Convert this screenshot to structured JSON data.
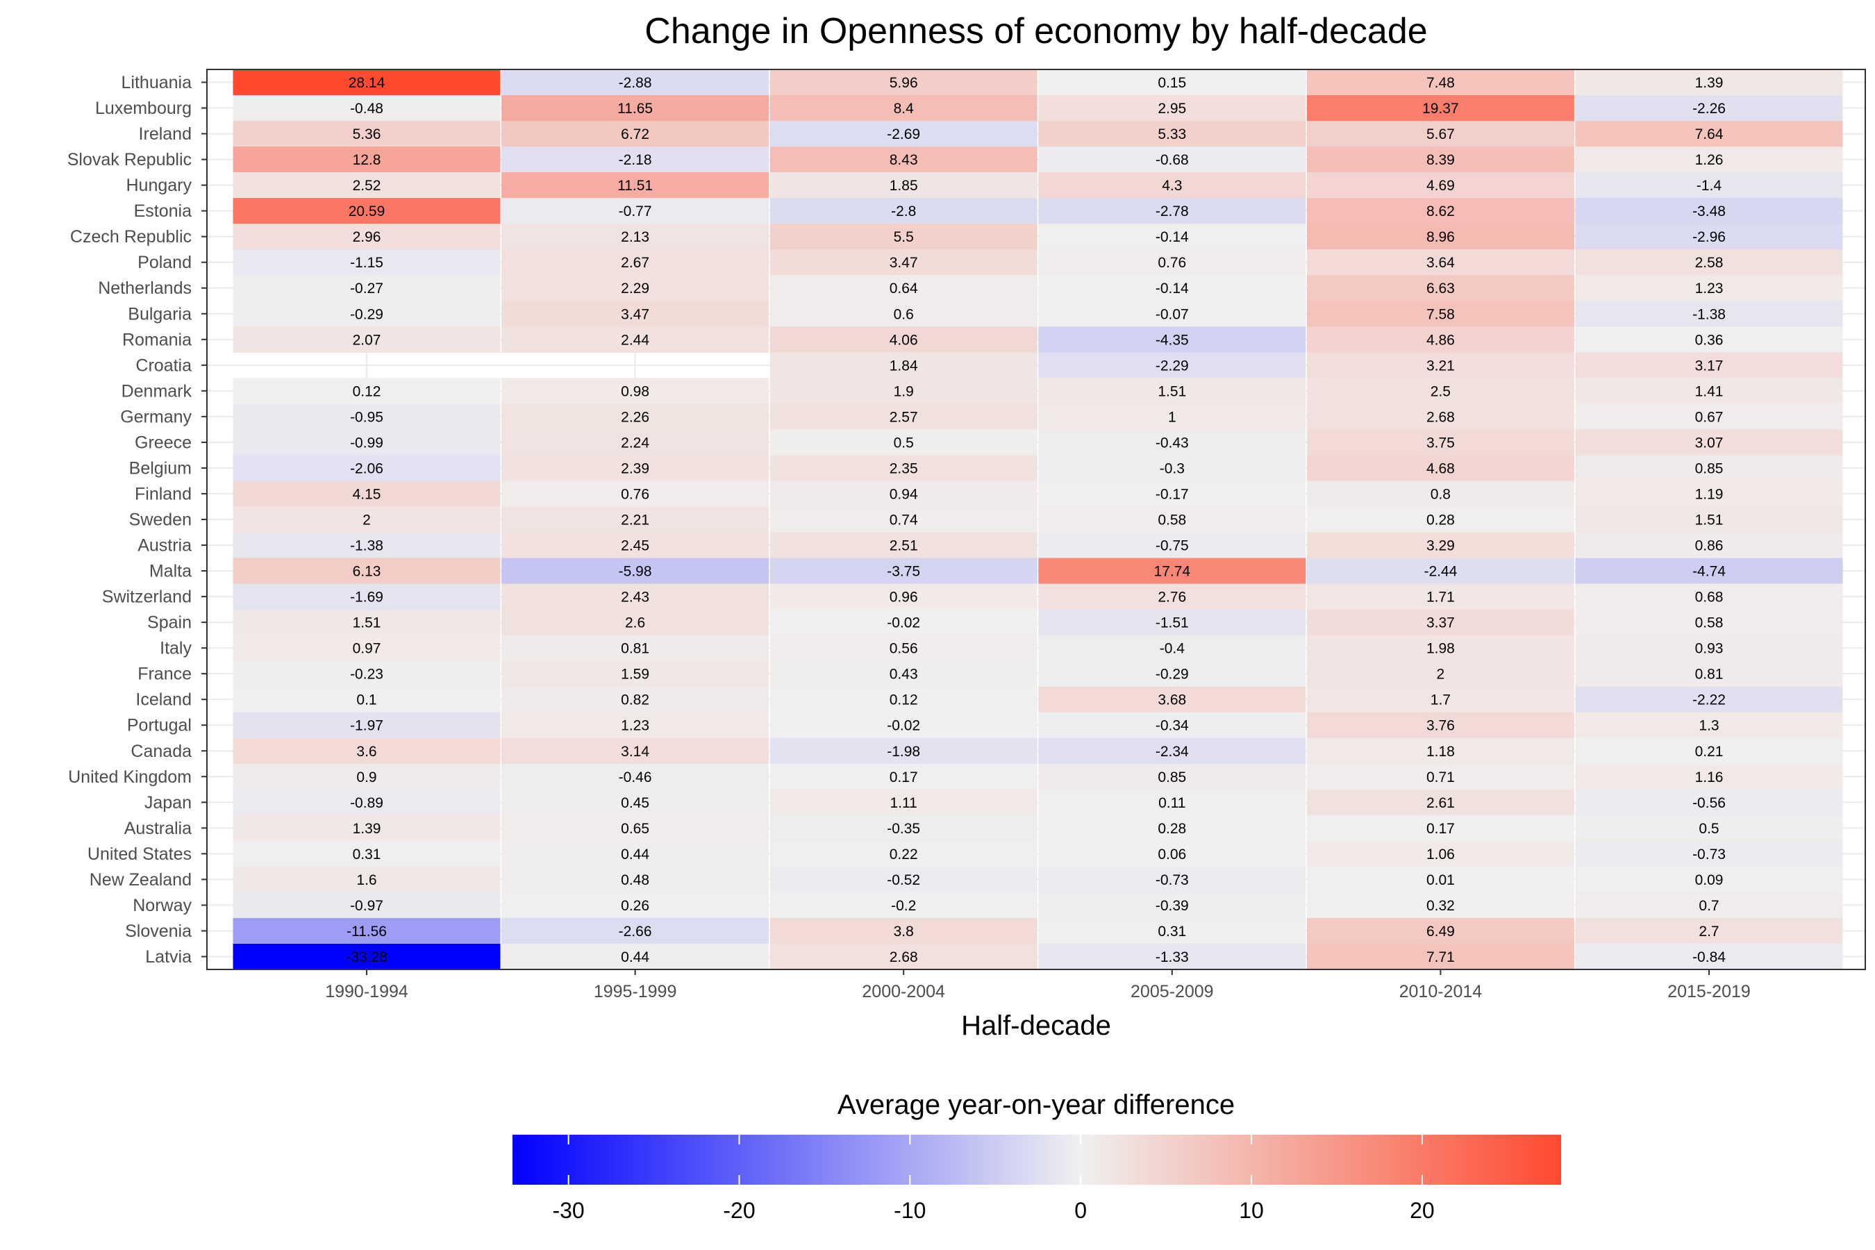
{
  "chart_data": {
    "type": "heatmap",
    "title": "Change in Openness of economy by half-decade",
    "xlabel": "Half-decade",
    "ylabel": "",
    "x_categories": [
      "1990-1994",
      "1995-1999",
      "2000-2004",
      "2005-2009",
      "2010-2014",
      "2015-2019"
    ],
    "y_categories": [
      "Lithuania",
      "Luxembourg",
      "Ireland",
      "Slovak Republic",
      "Hungary",
      "Estonia",
      "Czech Republic",
      "Poland",
      "Netherlands",
      "Bulgaria",
      "Romania",
      "Croatia",
      "Denmark",
      "Germany",
      "Greece",
      "Belgium",
      "Finland",
      "Sweden",
      "Austria",
      "Malta",
      "Switzerland",
      "Spain",
      "Italy",
      "France",
      "Iceland",
      "Portugal",
      "Canada",
      "United Kingdom",
      "Japan",
      "Australia",
      "United States",
      "New Zealand",
      "Norway",
      "Slovenia",
      "Latvia"
    ],
    "values": [
      [
        28.14,
        -2.88,
        5.96,
        0.15,
        7.48,
        1.39
      ],
      [
        -0.48,
        11.65,
        8.4,
        2.95,
        19.37,
        -2.26
      ],
      [
        5.36,
        6.72,
        -2.69,
        5.33,
        5.67,
        7.64
      ],
      [
        12.8,
        -2.18,
        8.43,
        -0.68,
        8.39,
        1.26
      ],
      [
        2.52,
        11.51,
        1.85,
        4.3,
        4.69,
        -1.4
      ],
      [
        20.59,
        -0.77,
        -2.8,
        -2.78,
        8.62,
        -3.48
      ],
      [
        2.96,
        2.13,
        5.5,
        -0.14,
        8.96,
        -2.96
      ],
      [
        -1.15,
        2.67,
        3.47,
        0.76,
        3.64,
        2.58
      ],
      [
        -0.27,
        2.29,
        0.64,
        -0.14,
        6.63,
        1.23
      ],
      [
        -0.29,
        3.47,
        0.6,
        -0.07,
        7.58,
        -1.38
      ],
      [
        2.07,
        2.44,
        4.06,
        -4.35,
        4.86,
        0.36
      ],
      [
        null,
        null,
        1.84,
        -2.29,
        3.21,
        3.17
      ],
      [
        0.12,
        0.98,
        1.9,
        1.51,
        2.5,
        1.41
      ],
      [
        -0.95,
        2.26,
        2.57,
        1,
        2.68,
        0.67
      ],
      [
        -0.99,
        2.24,
        0.5,
        -0.43,
        3.75,
        3.07
      ],
      [
        -2.06,
        2.39,
        2.35,
        -0.3,
        4.68,
        0.85
      ],
      [
        4.15,
        0.76,
        0.94,
        -0.17,
        0.8,
        1.19
      ],
      [
        2,
        2.21,
        0.74,
        0.58,
        0.28,
        1.51
      ],
      [
        -1.38,
        2.45,
        2.51,
        -0.75,
        3.29,
        0.86
      ],
      [
        6.13,
        -5.98,
        -3.75,
        17.74,
        -2.44,
        -4.74
      ],
      [
        -1.69,
        2.43,
        0.96,
        2.76,
        1.71,
        0.68
      ],
      [
        1.51,
        2.6,
        -0.02,
        -1.51,
        3.37,
        0.58
      ],
      [
        0.97,
        0.81,
        0.56,
        -0.4,
        1.98,
        0.93
      ],
      [
        -0.23,
        1.59,
        0.43,
        -0.29,
        2,
        0.81
      ],
      [
        0.1,
        0.82,
        0.12,
        3.68,
        1.7,
        -2.22
      ],
      [
        -1.97,
        1.23,
        -0.02,
        -0.34,
        3.76,
        1.3
      ],
      [
        3.6,
        3.14,
        -1.98,
        -2.34,
        1.18,
        0.21
      ],
      [
        0.9,
        -0.46,
        0.17,
        0.85,
        0.71,
        1.16
      ],
      [
        -0.89,
        0.45,
        1.11,
        0.11,
        2.61,
        -0.56
      ],
      [
        1.39,
        0.65,
        -0.35,
        0.28,
        0.17,
        0.5
      ],
      [
        0.31,
        0.44,
        0.22,
        0.06,
        1.06,
        -0.73
      ],
      [
        1.6,
        0.48,
        -0.52,
        -0.73,
        0.01,
        0.09
      ],
      [
        -0.97,
        0.26,
        -0.2,
        -0.39,
        0.32,
        0.7
      ],
      [
        -11.56,
        -2.66,
        3.8,
        0.31,
        6.49,
        2.7
      ],
      [
        -33.28,
        0.44,
        2.68,
        -1.33,
        7.71,
        -0.84
      ]
    ],
    "legend": {
      "title": "Average year-on-year difference",
      "position": "bottom",
      "ticks": [
        -30,
        -20,
        -10,
        0,
        10,
        20
      ],
      "range": [
        -33.28,
        28.14
      ],
      "colors": {
        "low": "#0000ff",
        "mid": "#f0f0f0",
        "high": "#ff4a2f"
      }
    },
    "grid": true,
    "background": "#ffffff",
    "panel_border": "#333333"
  }
}
